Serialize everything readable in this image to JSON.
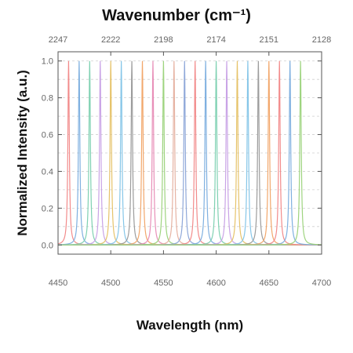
{
  "chart_data": {
    "type": "line",
    "title": "",
    "xlabel": "Wavelength (nm)",
    "x2label": "Wavenumber (cm⁻¹)",
    "ylabel": "Normalized Intensity (a.u.)",
    "xlim": [
      4450,
      4700
    ],
    "ylim": [
      -0.05,
      1.05
    ],
    "x_ticks": [
      4450,
      4500,
      4550,
      4600,
      4650,
      4700
    ],
    "y_ticks": [
      0.0,
      0.2,
      0.4,
      0.6,
      0.8,
      1.0
    ],
    "x2_ticks": [
      {
        "label": "2247",
        "at_x": 4450
      },
      {
        "label": "2222",
        "at_x": 4500
      },
      {
        "label": "2198",
        "at_x": 4550
      },
      {
        "label": "2174",
        "at_x": 4600
      },
      {
        "label": "2151",
        "at_x": 4650
      },
      {
        "label": "2128",
        "at_x": 4700
      }
    ],
    "grid": true,
    "legend": "none",
    "peak_height": 1.0,
    "peak_half_width_nm": 0.8,
    "series": [
      {
        "peak_x": 4460,
        "color": "#f28b8b"
      },
      {
        "peak_x": 4470,
        "color": "#7fb0e0"
      },
      {
        "peak_x": 4480,
        "color": "#7fd1b2"
      },
      {
        "peak_x": 4490,
        "color": "#c9a3e6"
      },
      {
        "peak_x": 4500,
        "color": "#e6c36a"
      },
      {
        "peak_x": 4510,
        "color": "#86c6e8"
      },
      {
        "peak_x": 4520,
        "color": "#9c9c9c"
      },
      {
        "peak_x": 4530,
        "color": "#f2a76b"
      },
      {
        "peak_x": 4540,
        "color": "#e88fb8"
      },
      {
        "peak_x": 4550,
        "color": "#9ed47f"
      },
      {
        "peak_x": 4560,
        "color": "#e6b3a3"
      },
      {
        "peak_x": 4570,
        "color": "#8fa8d9"
      },
      {
        "peak_x": 4580,
        "color": "#f28b8b"
      },
      {
        "peak_x": 4590,
        "color": "#7fb0e0"
      },
      {
        "peak_x": 4600,
        "color": "#7fd1b2"
      },
      {
        "peak_x": 4610,
        "color": "#c9a3e6"
      },
      {
        "peak_x": 4620,
        "color": "#e6c36a"
      },
      {
        "peak_x": 4630,
        "color": "#86c6e8"
      },
      {
        "peak_x": 4640,
        "color": "#9c9c9c"
      },
      {
        "peak_x": 4650,
        "color": "#f2a76b"
      },
      {
        "peak_x": 4660,
        "color": "#f28b8b"
      },
      {
        "peak_x": 4670,
        "color": "#7fb0e0"
      },
      {
        "peak_x": 4680,
        "color": "#9ed47f"
      }
    ]
  }
}
